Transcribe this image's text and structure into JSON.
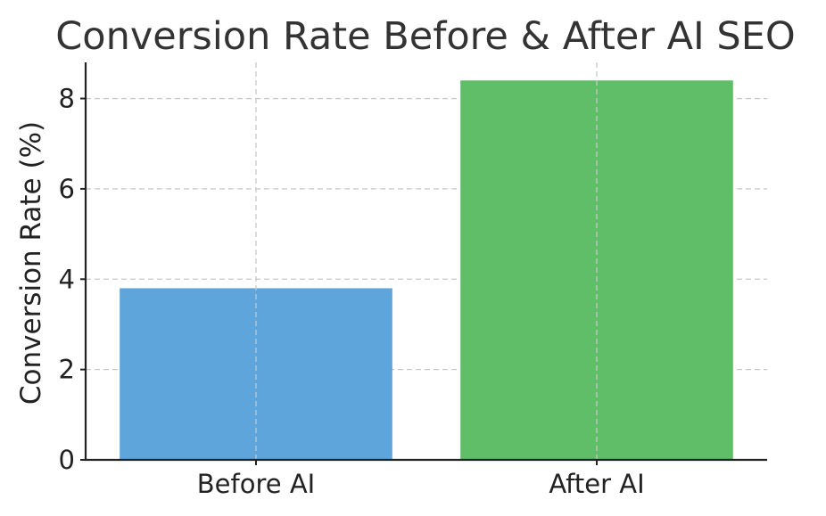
{
  "chart_data": {
    "type": "bar",
    "title": "Conversion Rate Before & After AI SEO",
    "xlabel": "",
    "ylabel": "Conversion Rate (%)",
    "categories": [
      "Before AI",
      "After AI"
    ],
    "values": [
      3.8,
      8.4
    ],
    "colors": [
      "#5da5da",
      "#60bd68"
    ],
    "ylim": [
      0,
      8.8
    ],
    "yticks": [
      0,
      2,
      4,
      6,
      8
    ],
    "grid": true,
    "legend": "none"
  }
}
